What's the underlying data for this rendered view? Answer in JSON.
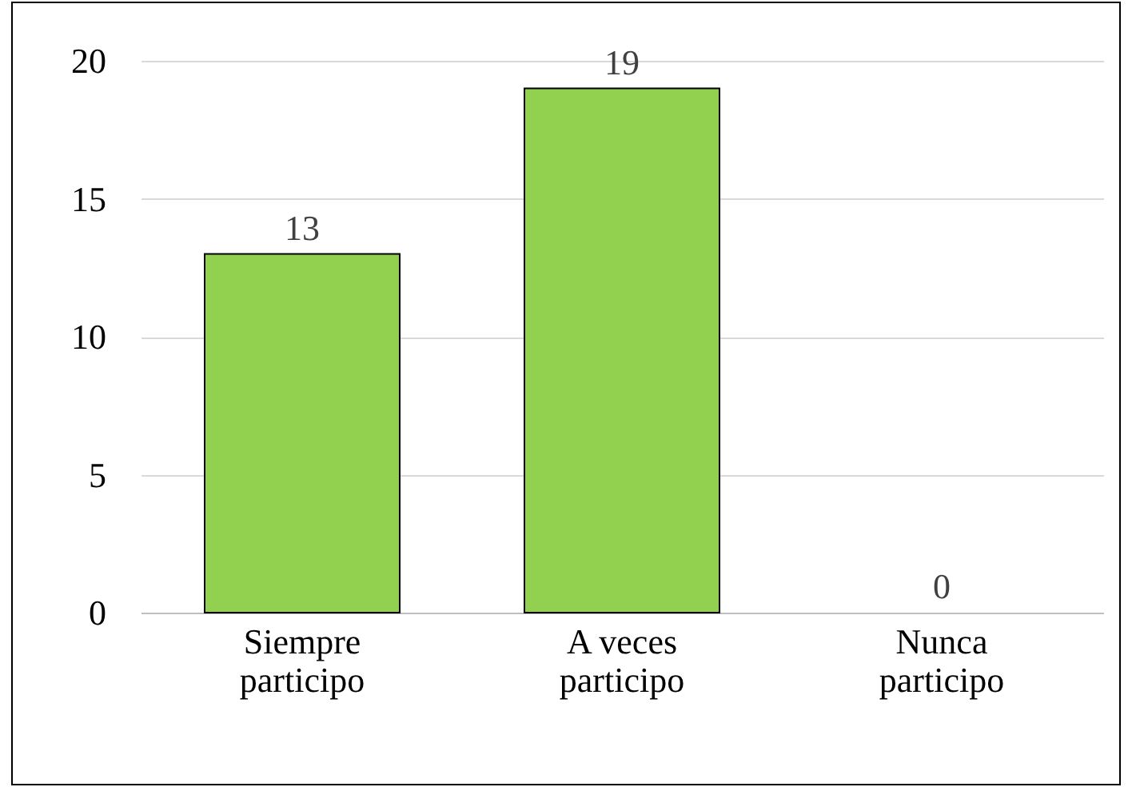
{
  "chart_data": {
    "type": "bar",
    "categories": [
      "Siempre participo",
      "A veces participo",
      "Nunca participo"
    ],
    "values": [
      13,
      19,
      0
    ],
    "color": "#92d050",
    "ylim": [
      0,
      20
    ],
    "yticks": [
      0,
      5,
      10,
      15,
      20
    ],
    "grid": "y",
    "data_labels": true
  }
}
